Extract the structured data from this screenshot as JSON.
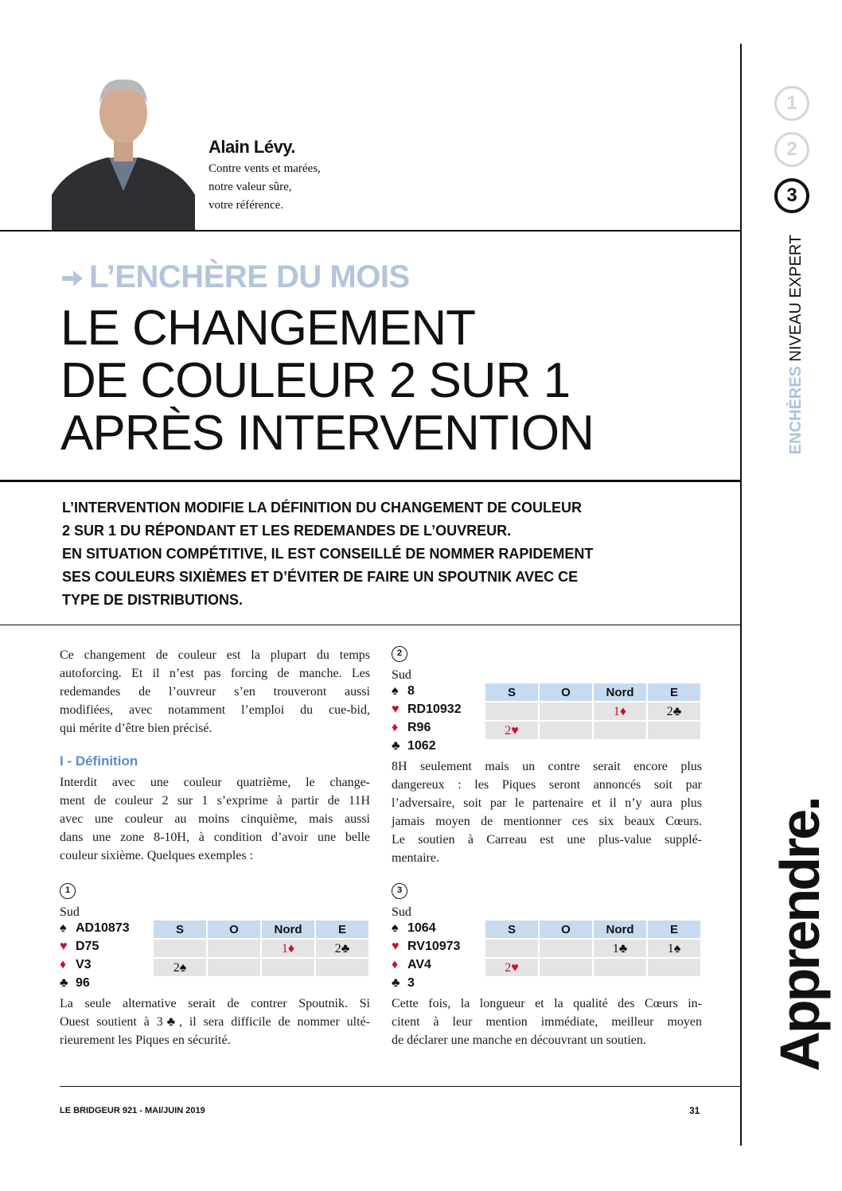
{
  "author": {
    "name": "Alain Lévy.",
    "tagline": [
      "Contre vents et marées,",
      "notre valeur sûre,",
      "votre référence."
    ]
  },
  "sidebar": {
    "levels": [
      "1",
      "2",
      "3"
    ],
    "section": "ENCHÈRES",
    "level": "NIVEAU EXPERT",
    "word": "Apprendre."
  },
  "header": {
    "kicker": "L’ENCHÈRE DU MOIS",
    "title": [
      "LE CHANGEMENT",
      "DE COULEUR 2 SUR 1",
      "APRÈS INTERVENTION"
    ]
  },
  "lead": [
    "L’INTERVENTION MODIFIE LA DÉFINITION DU CHANGEMENT DE COULEUR",
    "2 SUR 1 DU RÉPONDANT ET LES REDEMANDES DE L’OUVREUR.",
    "EN SITUATION COMPÉTITIVE, IL EST CONSEILLÉ DE NOMMER RAPIDEMENT",
    "SES COULEURS SIXIÈMES ET D’ÉVITER DE FAIRE UN SPOUTNIK AVEC CE",
    "TYPE DE DISTRIBUTIONS."
  ],
  "intro": [
    "Ce changement de couleur est la plupart du temps",
    "autoforcing. Et il n’est pas forcing de manche. Les",
    "redemandes de l’ouvreur s’en trouveront aussi",
    "modifiées, avec notamment l’emploi du cue-bid,",
    "qui mérite d’être bien précisé."
  ],
  "definition": {
    "heading": "I - Définition",
    "lines": [
      "Interdit avec une couleur quatrième, le change-",
      "ment de couleur 2 sur 1 s’exprime à partir de 11H",
      "avec une couleur au moins cinquième, mais aussi",
      "dans une zone 8-10H, à condition d’avoir une belle",
      "couleur sixième. Quelques exemples :"
    ]
  },
  "examples": [
    {
      "number": "1",
      "seat": "Sud",
      "hand": [
        {
          "suit": "♠",
          "cards": "AD10873"
        },
        {
          "suit": "♥",
          "cards": "D75"
        },
        {
          "suit": "♦",
          "cards": "V3"
        },
        {
          "suit": "♣",
          "cards": "96"
        }
      ],
      "table": {
        "header": [
          "S",
          "O",
          "Nord",
          "E"
        ],
        "rows": [
          [
            null,
            null,
            "1♦",
            "2♣"
          ],
          [
            "2♠",
            null,
            null,
            null
          ]
        ]
      },
      "text": [
        "La seule alternative serait de contrer Spoutnik. Si",
        "Ouest soutient à 3♣, il sera difficile de nommer ulté-",
        "rieurement les Piques en sécurité."
      ]
    },
    {
      "number": "2",
      "seat": "Sud",
      "hand": [
        {
          "suit": "♠",
          "cards": "8"
        },
        {
          "suit": "♥",
          "cards": "RD10932"
        },
        {
          "suit": "♦",
          "cards": "R96"
        },
        {
          "suit": "♣",
          "cards": "1062"
        }
      ],
      "table": {
        "header": [
          "S",
          "O",
          "Nord",
          "E"
        ],
        "rows": [
          [
            null,
            null,
            "1♦",
            "2♣"
          ],
          [
            "2♥",
            null,
            null,
            null
          ]
        ]
      },
      "text": [
        "8H seulement mais un contre serait encore plus",
        "dangereux : les Piques seront annoncés soit par",
        "l’adversaire, soit par le partenaire et il n’y aura plus",
        "jamais moyen de mentionner ces six beaux Cœurs.",
        "Le soutien à Carreau est une plus-value supplé-",
        "mentaire."
      ]
    },
    {
      "number": "3",
      "seat": "Sud",
      "hand": [
        {
          "suit": "♠",
          "cards": "1064"
        },
        {
          "suit": "♥",
          "cards": "RV10973"
        },
        {
          "suit": "♦",
          "cards": "AV4"
        },
        {
          "suit": "♣",
          "cards": "3"
        }
      ],
      "table": {
        "header": [
          "S",
          "O",
          "Nord",
          "E"
        ],
        "rows": [
          [
            null,
            null,
            "1♣",
            "1♠"
          ],
          [
            "2♥",
            null,
            null,
            null
          ]
        ]
      },
      "text": [
        "Cette fois, la longueur et la qualité des Cœurs in-",
        "citent à leur mention immédiate, meilleur moyen",
        "de déclarer une manche en découvrant un soutien."
      ]
    }
  ],
  "footer": {
    "publication": "LE BRIDGEUR 921 - MAI/JUIN 2019",
    "page": "31"
  }
}
